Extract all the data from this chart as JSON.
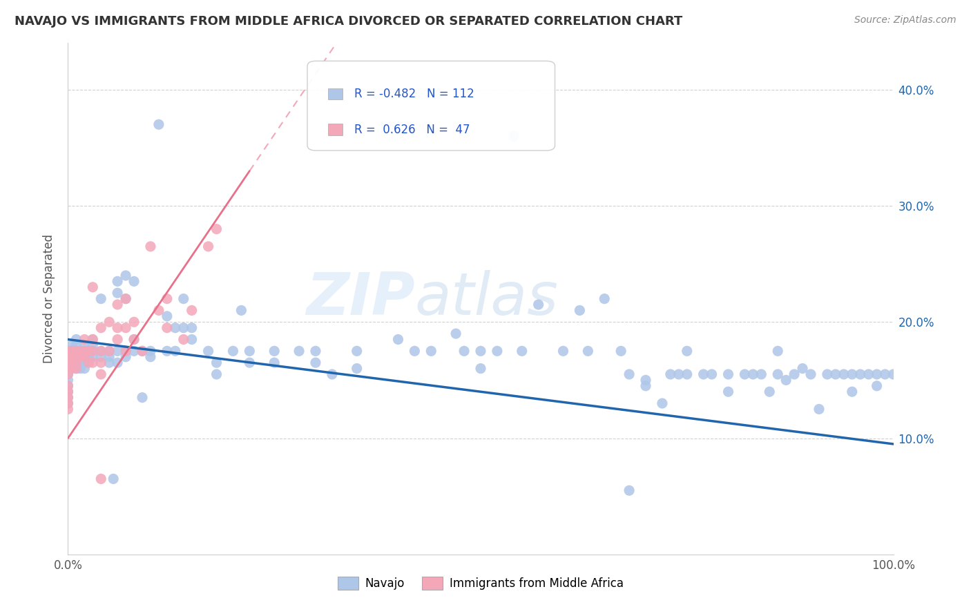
{
  "title": "NAVAJO VS IMMIGRANTS FROM MIDDLE AFRICA DIVORCED OR SEPARATED CORRELATION CHART",
  "source": "Source: ZipAtlas.com",
  "ylabel": "Divorced or Separated",
  "xlim": [
    0.0,
    1.0
  ],
  "ylim": [
    0.0,
    0.44
  ],
  "xtick_positions": [
    0.0,
    0.25,
    0.5,
    0.75,
    1.0
  ],
  "xtick_labels": [
    "0.0%",
    "",
    "",
    "",
    "100.0%"
  ],
  "ytick_positions": [
    0.1,
    0.2,
    0.3,
    0.4
  ],
  "ytick_labels": [
    "10.0%",
    "20.0%",
    "30.0%",
    "40.0%"
  ],
  "navajo_color": "#aec6e8",
  "immigrants_color": "#f4a7b9",
  "navajo_line_color": "#2166ac",
  "immigrants_line_color": "#e8708a",
  "watermark_color": "#cde0f0",
  "background_color": "#ffffff",
  "legend_box_color": "#f0f0f0",
  "navajo_trend_x": [
    0.0,
    1.0
  ],
  "navajo_trend_y": [
    0.185,
    0.095
  ],
  "immigrants_trend_x": [
    0.0,
    0.22
  ],
  "immigrants_trend_y": [
    0.1,
    0.33
  ],
  "navajo_points": [
    [
      0.0,
      0.175
    ],
    [
      0.0,
      0.17
    ],
    [
      0.0,
      0.165
    ],
    [
      0.0,
      0.16
    ],
    [
      0.0,
      0.155
    ],
    [
      0.0,
      0.15
    ],
    [
      0.0,
      0.145
    ],
    [
      0.0,
      0.14
    ],
    [
      0.0,
      0.135
    ],
    [
      0.0,
      0.13
    ],
    [
      0.005,
      0.18
    ],
    [
      0.005,
      0.175
    ],
    [
      0.005,
      0.17
    ],
    [
      0.005,
      0.165
    ],
    [
      0.01,
      0.185
    ],
    [
      0.01,
      0.18
    ],
    [
      0.01,
      0.175
    ],
    [
      0.01,
      0.17
    ],
    [
      0.01,
      0.165
    ],
    [
      0.01,
      0.16
    ],
    [
      0.015,
      0.175
    ],
    [
      0.015,
      0.17
    ],
    [
      0.015,
      0.165
    ],
    [
      0.015,
      0.16
    ],
    [
      0.02,
      0.18
    ],
    [
      0.02,
      0.175
    ],
    [
      0.02,
      0.17
    ],
    [
      0.02,
      0.165
    ],
    [
      0.02,
      0.16
    ],
    [
      0.025,
      0.175
    ],
    [
      0.025,
      0.17
    ],
    [
      0.03,
      0.185
    ],
    [
      0.03,
      0.18
    ],
    [
      0.03,
      0.175
    ],
    [
      0.03,
      0.17
    ],
    [
      0.04,
      0.22
    ],
    [
      0.04,
      0.175
    ],
    [
      0.04,
      0.17
    ],
    [
      0.05,
      0.175
    ],
    [
      0.05,
      0.17
    ],
    [
      0.05,
      0.165
    ],
    [
      0.06,
      0.235
    ],
    [
      0.06,
      0.225
    ],
    [
      0.06,
      0.175
    ],
    [
      0.06,
      0.165
    ],
    [
      0.07,
      0.24
    ],
    [
      0.07,
      0.22
    ],
    [
      0.07,
      0.175
    ],
    [
      0.07,
      0.17
    ],
    [
      0.08,
      0.235
    ],
    [
      0.08,
      0.185
    ],
    [
      0.08,
      0.175
    ],
    [
      0.09,
      0.175
    ],
    [
      0.09,
      0.135
    ],
    [
      0.1,
      0.175
    ],
    [
      0.1,
      0.17
    ],
    [
      0.11,
      0.37
    ],
    [
      0.12,
      0.205
    ],
    [
      0.12,
      0.175
    ],
    [
      0.13,
      0.195
    ],
    [
      0.13,
      0.175
    ],
    [
      0.14,
      0.22
    ],
    [
      0.14,
      0.195
    ],
    [
      0.15,
      0.195
    ],
    [
      0.15,
      0.185
    ],
    [
      0.17,
      0.175
    ],
    [
      0.18,
      0.165
    ],
    [
      0.18,
      0.155
    ],
    [
      0.2,
      0.175
    ],
    [
      0.21,
      0.21
    ],
    [
      0.22,
      0.175
    ],
    [
      0.22,
      0.165
    ],
    [
      0.25,
      0.175
    ],
    [
      0.25,
      0.165
    ],
    [
      0.28,
      0.175
    ],
    [
      0.3,
      0.175
    ],
    [
      0.3,
      0.165
    ],
    [
      0.32,
      0.155
    ],
    [
      0.35,
      0.175
    ],
    [
      0.35,
      0.16
    ],
    [
      0.4,
      0.185
    ],
    [
      0.42,
      0.175
    ],
    [
      0.44,
      0.175
    ],
    [
      0.47,
      0.19
    ],
    [
      0.48,
      0.175
    ],
    [
      0.5,
      0.175
    ],
    [
      0.5,
      0.16
    ],
    [
      0.52,
      0.175
    ],
    [
      0.55,
      0.175
    ],
    [
      0.57,
      0.215
    ],
    [
      0.6,
      0.175
    ],
    [
      0.62,
      0.21
    ],
    [
      0.63,
      0.175
    ],
    [
      0.65,
      0.22
    ],
    [
      0.67,
      0.175
    ],
    [
      0.68,
      0.155
    ],
    [
      0.7,
      0.15
    ],
    [
      0.7,
      0.145
    ],
    [
      0.72,
      0.13
    ],
    [
      0.73,
      0.155
    ],
    [
      0.74,
      0.155
    ],
    [
      0.75,
      0.175
    ],
    [
      0.75,
      0.155
    ],
    [
      0.77,
      0.155
    ],
    [
      0.78,
      0.155
    ],
    [
      0.8,
      0.155
    ],
    [
      0.8,
      0.14
    ],
    [
      0.82,
      0.155
    ],
    [
      0.83,
      0.155
    ],
    [
      0.84,
      0.155
    ],
    [
      0.85,
      0.14
    ],
    [
      0.86,
      0.175
    ],
    [
      0.86,
      0.155
    ],
    [
      0.87,
      0.15
    ],
    [
      0.88,
      0.155
    ],
    [
      0.89,
      0.16
    ],
    [
      0.9,
      0.155
    ],
    [
      0.91,
      0.125
    ],
    [
      0.92,
      0.155
    ],
    [
      0.93,
      0.155
    ],
    [
      0.94,
      0.155
    ],
    [
      0.95,
      0.155
    ],
    [
      0.95,
      0.14
    ],
    [
      0.96,
      0.155
    ],
    [
      0.97,
      0.155
    ],
    [
      0.98,
      0.155
    ],
    [
      0.98,
      0.145
    ],
    [
      0.99,
      0.155
    ],
    [
      1.0,
      0.155
    ],
    [
      0.54,
      0.36
    ],
    [
      0.055,
      0.065
    ],
    [
      0.68,
      0.055
    ]
  ],
  "immigrants_points": [
    [
      0.0,
      0.175
    ],
    [
      0.0,
      0.17
    ],
    [
      0.0,
      0.165
    ],
    [
      0.0,
      0.16
    ],
    [
      0.0,
      0.155
    ],
    [
      0.0,
      0.145
    ],
    [
      0.0,
      0.14
    ],
    [
      0.0,
      0.135
    ],
    [
      0.0,
      0.13
    ],
    [
      0.0,
      0.125
    ],
    [
      0.005,
      0.175
    ],
    [
      0.005,
      0.17
    ],
    [
      0.005,
      0.165
    ],
    [
      0.005,
      0.16
    ],
    [
      0.01,
      0.175
    ],
    [
      0.01,
      0.17
    ],
    [
      0.01,
      0.165
    ],
    [
      0.01,
      0.16
    ],
    [
      0.015,
      0.175
    ],
    [
      0.015,
      0.17
    ],
    [
      0.02,
      0.185
    ],
    [
      0.02,
      0.175
    ],
    [
      0.02,
      0.17
    ],
    [
      0.025,
      0.175
    ],
    [
      0.025,
      0.165
    ],
    [
      0.03,
      0.23
    ],
    [
      0.03,
      0.185
    ],
    [
      0.03,
      0.175
    ],
    [
      0.03,
      0.165
    ],
    [
      0.04,
      0.195
    ],
    [
      0.04,
      0.175
    ],
    [
      0.04,
      0.165
    ],
    [
      0.04,
      0.155
    ],
    [
      0.05,
      0.2
    ],
    [
      0.05,
      0.175
    ],
    [
      0.06,
      0.215
    ],
    [
      0.06,
      0.195
    ],
    [
      0.06,
      0.185
    ],
    [
      0.07,
      0.22
    ],
    [
      0.07,
      0.195
    ],
    [
      0.07,
      0.175
    ],
    [
      0.08,
      0.2
    ],
    [
      0.08,
      0.185
    ],
    [
      0.09,
      0.175
    ],
    [
      0.1,
      0.265
    ],
    [
      0.11,
      0.21
    ],
    [
      0.12,
      0.22
    ],
    [
      0.12,
      0.195
    ],
    [
      0.14,
      0.185
    ],
    [
      0.15,
      0.21
    ],
    [
      0.17,
      0.265
    ],
    [
      0.18,
      0.28
    ],
    [
      0.04,
      0.065
    ]
  ]
}
